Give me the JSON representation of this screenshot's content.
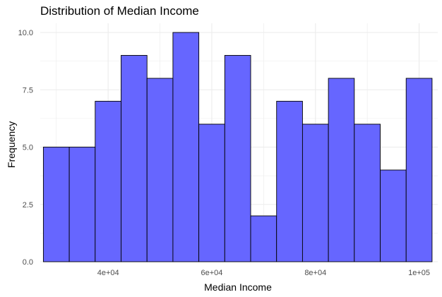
{
  "chart_data": {
    "type": "bar",
    "title": "Distribution of Median Income",
    "xlabel": "Median Income",
    "ylabel": "Frequency",
    "xlim": [
      26900,
      103600
    ],
    "ylim": [
      0,
      10.4
    ],
    "x_ticks": [
      {
        "value": 40000,
        "label": "4e+04"
      },
      {
        "value": 60000,
        "label": "6e+04"
      },
      {
        "value": 80000,
        "label": "8e+04"
      },
      {
        "value": 100000,
        "label": "1e+05"
      }
    ],
    "y_ticks": [
      {
        "value": 0,
        "label": "0.0"
      },
      {
        "value": 2.5,
        "label": "2.5"
      },
      {
        "value": 5,
        "label": "5.0"
      },
      {
        "value": 7.5,
        "label": "7.5"
      },
      {
        "value": 10,
        "label": "10.0"
      }
    ],
    "bins": [
      {
        "x0": 27500,
        "x1": 32500,
        "count": 5
      },
      {
        "x0": 32500,
        "x1": 37500,
        "count": 5
      },
      {
        "x0": 37500,
        "x1": 42500,
        "count": 7
      },
      {
        "x0": 42500,
        "x1": 47500,
        "count": 9
      },
      {
        "x0": 47500,
        "x1": 52500,
        "count": 8
      },
      {
        "x0": 52500,
        "x1": 57500,
        "count": 10
      },
      {
        "x0": 57500,
        "x1": 62500,
        "count": 6
      },
      {
        "x0": 62500,
        "x1": 67500,
        "count": 9
      },
      {
        "x0": 67500,
        "x1": 72500,
        "count": 2
      },
      {
        "x0": 72500,
        "x1": 77500,
        "count": 7
      },
      {
        "x0": 77500,
        "x1": 82500,
        "count": 6
      },
      {
        "x0": 82500,
        "x1": 87500,
        "count": 8
      },
      {
        "x0": 87500,
        "x1": 92500,
        "count": 6
      },
      {
        "x0": 92500,
        "x1": 97500,
        "count": 4
      },
      {
        "x0": 97500,
        "x1": 102500,
        "count": 8
      }
    ],
    "grid": true,
    "bar_fill": "#6666ff",
    "bar_stroke": "#000000",
    "grid_color": "#ebebeb"
  }
}
